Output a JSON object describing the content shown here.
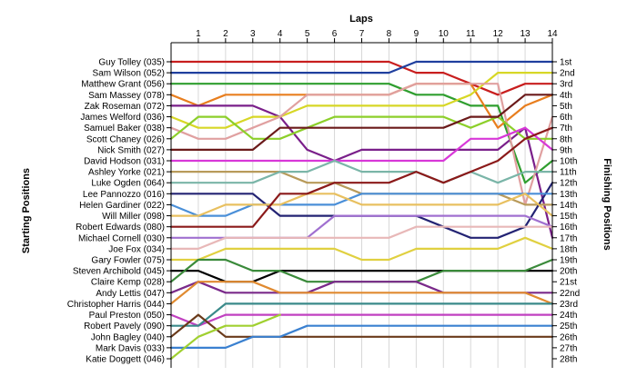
{
  "chart_data": {
    "type": "line",
    "title": "",
    "xlabel": "Laps",
    "ylabel_left": "Starting Positions",
    "ylabel_right": "Finishing Positions",
    "x_ticks": [
      1,
      2,
      3,
      4,
      5,
      6,
      7,
      8,
      9,
      10,
      11,
      12,
      13,
      14
    ],
    "x_range": [
      0,
      14
    ],
    "y_range": [
      1,
      28
    ],
    "grid": "vertical",
    "drivers": [
      "Guy Tolley (035)",
      "Sam Wilson (052)",
      "Matthew Grant (056)",
      "Sam Massey (078)",
      "Zak Roseman (072)",
      "James Welford (036)",
      "Samuel Baker (038)",
      "Scott Chaney (026)",
      "Nick Smith (027)",
      "David Hodson (031)",
      "Ashley Yorke (021)",
      "Luke Ogden (064)",
      "Lee Pannozzo (016)",
      "Helen Gardiner (022)",
      "Will Miller (098)",
      "Robert Edwards (080)",
      "Michael Cornell (030)",
      "Joe Fox (034)",
      "Gary Fowler (075)",
      "Steven Archibold (045)",
      "Claire Kemp (028)",
      "Andy Lettis (047)",
      "Christopher Harris (044)",
      "Paul Preston (050)",
      "Robert Pavely (090)",
      "John Bagley (040)",
      "Mark Davis (033)",
      "Katie Doggett (046)"
    ],
    "finishing_positions": [
      "1st",
      "2nd",
      "3rd",
      "4th",
      "5th",
      "6th",
      "7th",
      "8th",
      "9th",
      "10th",
      "11th",
      "12th",
      "13th",
      "14th",
      "15th",
      "16th",
      "17th",
      "18th",
      "19th",
      "20th",
      "21st",
      "22nd",
      "23rd",
      "24th",
      "25th",
      "26th",
      "27th",
      "28th"
    ],
    "series": [
      {
        "start": 1,
        "color": "#c81e1e",
        "positions": [
          1,
          1,
          1,
          1,
          1,
          1,
          1,
          1,
          2,
          2,
          3,
          4,
          3,
          3
        ]
      },
      {
        "start": 2,
        "color": "#1f3f9e",
        "positions": [
          2,
          2,
          2,
          2,
          2,
          2,
          2,
          2,
          1,
          1,
          1,
          1,
          1,
          1
        ]
      },
      {
        "start": 3,
        "color": "#2f9e2f",
        "positions": [
          3,
          3,
          3,
          3,
          3,
          3,
          3,
          3,
          4,
          4,
          5,
          5,
          12,
          10
        ]
      },
      {
        "start": 4,
        "color": "#e87e1e",
        "positions": [
          5,
          4,
          4,
          4,
          4,
          4,
          4,
          4,
          3,
          3,
          3,
          7,
          5,
          4
        ]
      },
      {
        "start": 5,
        "color": "#7a1f8a",
        "positions": [
          5,
          5,
          5,
          6,
          9,
          10,
          9,
          9,
          9,
          9,
          9,
          9,
          7,
          17
        ]
      },
      {
        "start": 6,
        "color": "#d7d726",
        "positions": [
          7,
          7,
          6,
          6,
          5,
          5,
          5,
          5,
          5,
          5,
          4,
          2,
          2,
          2
        ]
      },
      {
        "start": 7,
        "color": "#e0a0a0",
        "positions": [
          8,
          8,
          7,
          6,
          4,
          4,
          4,
          4,
          3,
          3,
          3,
          3,
          14,
          6
        ]
      },
      {
        "start": 8,
        "color": "#8ccf2a",
        "positions": [
          6,
          6,
          8,
          8,
          7,
          6,
          6,
          6,
          6,
          6,
          7,
          6,
          8,
          8
        ]
      },
      {
        "start": 9,
        "color": "#6b1a1a",
        "positions": [
          9,
          9,
          9,
          7,
          7,
          7,
          7,
          7,
          7,
          7,
          6,
          6,
          4,
          4
        ]
      },
      {
        "start": 10,
        "color": "#d838d8",
        "positions": [
          10,
          10,
          10,
          10,
          10,
          10,
          10,
          10,
          10,
          10,
          8,
          8,
          7,
          9
        ]
      },
      {
        "start": 11,
        "color": "#b89a5a",
        "positions": [
          11,
          11,
          11,
          11,
          12,
          12,
          13,
          13,
          13,
          13,
          13,
          13,
          14,
          14
        ]
      },
      {
        "start": 12,
        "color": "#7ab5a8",
        "positions": [
          12,
          12,
          12,
          11,
          11,
          10,
          11,
          11,
          11,
          12,
          11,
          12,
          11,
          11
        ]
      },
      {
        "start": 13,
        "color": "#232373",
        "positions": [
          13,
          13,
          13,
          15,
          15,
          15,
          15,
          15,
          15,
          16,
          17,
          17,
          16,
          12
        ]
      },
      {
        "start": 14,
        "color": "#4a8fd8",
        "positions": [
          15,
          15,
          14,
          14,
          14,
          14,
          13,
          13,
          13,
          13,
          13,
          13,
          13,
          13
        ]
      },
      {
        "start": 15,
        "color": "#e8c060",
        "positions": [
          15,
          14,
          14,
          14,
          13,
          13,
          14,
          14,
          14,
          14,
          14,
          14,
          13,
          15
        ]
      },
      {
        "start": 16,
        "color": "#8b1a1a",
        "positions": [
          16,
          16,
          16,
          13,
          13,
          12,
          12,
          12,
          11,
          12,
          11,
          10,
          8,
          7
        ]
      },
      {
        "start": 17,
        "color": "#a070d0",
        "positions": [
          17,
          17,
          17,
          17,
          17,
          15,
          15,
          15,
          15,
          15,
          15,
          15,
          15,
          16
        ]
      },
      {
        "start": 18,
        "color": "#e8b8b8",
        "positions": [
          18,
          17,
          17,
          17,
          17,
          17,
          17,
          17,
          16,
          16,
          16,
          16,
          16,
          16
        ]
      },
      {
        "start": 19,
        "color": "#e0d040",
        "positions": [
          19,
          18,
          18,
          18,
          18,
          18,
          19,
          19,
          18,
          18,
          18,
          18,
          17,
          18
        ]
      },
      {
        "start": 20,
        "color": "#000000",
        "positions": [
          20,
          21,
          21,
          20,
          20,
          20,
          20,
          20,
          20,
          20,
          20,
          20,
          20,
          20
        ]
      },
      {
        "start": 21,
        "color": "#3a8a3a",
        "positions": [
          19,
          19,
          20,
          20,
          21,
          21,
          21,
          21,
          21,
          20,
          20,
          20,
          20,
          19
        ]
      },
      {
        "start": 22,
        "color": "#7a2a8a",
        "positions": [
          21,
          22,
          22,
          22,
          22,
          21,
          21,
          21,
          21,
          22,
          22,
          22,
          22,
          22
        ]
      },
      {
        "start": 23,
        "color": "#e08a30",
        "positions": [
          21,
          21,
          21,
          22,
          22,
          22,
          22,
          22,
          22,
          22,
          22,
          22,
          22,
          23
        ]
      },
      {
        "start": 24,
        "color": "#c040c0",
        "positions": [
          25,
          24,
          24,
          24,
          24,
          24,
          24,
          24,
          24,
          24,
          24,
          24,
          24,
          24
        ]
      },
      {
        "start": 25,
        "color": "#3a8a8a",
        "positions": [
          25,
          23,
          23,
          23,
          23,
          23,
          23,
          23,
          23,
          23,
          23,
          23,
          23,
          23
        ]
      },
      {
        "start": 26,
        "color": "#6a3a1a",
        "positions": [
          24,
          26,
          26,
          26,
          26,
          26,
          26,
          26,
          26,
          26,
          26,
          26,
          26,
          26
        ]
      },
      {
        "start": 27,
        "color": "#3a80d0",
        "positions": [
          27,
          27,
          26,
          26,
          25,
          25,
          25,
          25,
          25,
          25,
          25,
          25,
          25,
          25
        ]
      },
      {
        "start": 28,
        "color": "#a0d030",
        "positions": [
          26,
          25,
          25,
          24,
          null,
          null,
          null,
          null,
          null,
          null,
          null,
          null,
          null,
          null
        ]
      }
    ]
  }
}
